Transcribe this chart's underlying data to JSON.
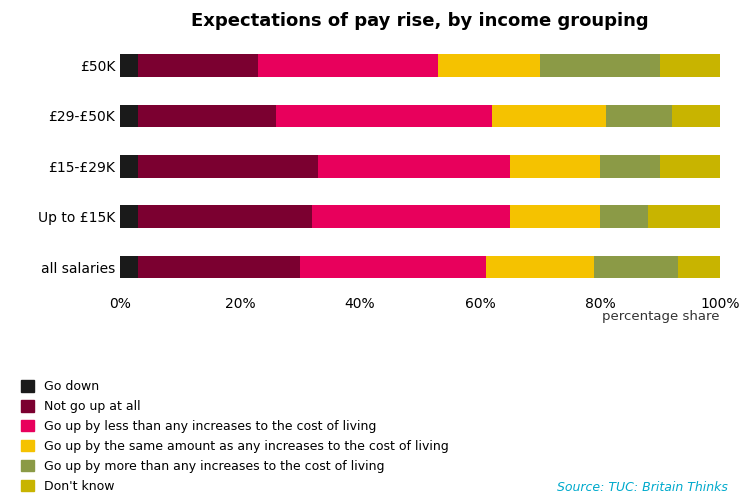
{
  "title": "Expectations of pay rise, by income grouping",
  "categories": [
    "all salaries",
    "Up to £15K",
    "£15-£29K",
    "£29-£50K",
    "£50K"
  ],
  "segments": [
    {
      "label": "Go down",
      "color": "#1a1a1a",
      "values": [
        3,
        3,
        3,
        3,
        3
      ]
    },
    {
      "label": "Not go up at all",
      "color": "#7b0030",
      "values": [
        27,
        29,
        30,
        23,
        20
      ]
    },
    {
      "label": "Go up by less than any increases to the cost of living",
      "color": "#e8005c",
      "values": [
        31,
        33,
        32,
        36,
        30
      ]
    },
    {
      "label": "Go up by the same amount as any increases to the cost of living",
      "color": "#f5c200",
      "values": [
        18,
        15,
        15,
        19,
        17
      ]
    },
    {
      "label": "Go up by more than any increases to the cost of living",
      "color": "#8b9a46",
      "values": [
        14,
        8,
        10,
        11,
        20
      ]
    },
    {
      "label": "Don't know",
      "color": "#c8b400",
      "values": [
        7,
        12,
        10,
        8,
        10
      ]
    }
  ],
  "xlabel": "percentage share",
  "source_text": "Source: TUC: Britain Thinks",
  "source_color": "#00aacc",
  "background_color": "#ffffff",
  "bar_height": 0.45,
  "xlim": [
    0,
    100
  ],
  "xticks": [
    0,
    20,
    40,
    60,
    80,
    100
  ],
  "xticklabels": [
    "0%",
    "20%",
    "40%",
    "60%",
    "80%",
    "100%"
  ],
  "title_fontsize": 13,
  "legend_fontsize": 9,
  "axis_fontsize": 10
}
